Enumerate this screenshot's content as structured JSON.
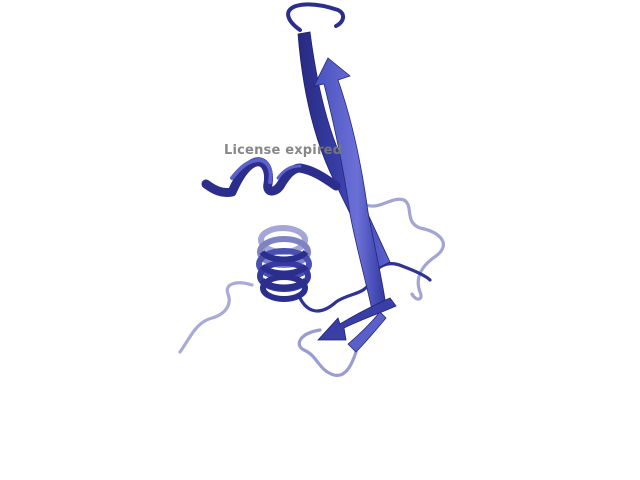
{
  "scene": {
    "description_label": "protein-cartoon",
    "colors": {
      "background": "#ffffff",
      "ribbon_dark": "#2b2e8c",
      "ribbon_mid": "#3a3fa8",
      "ribbon_light": "#5a60c8",
      "coil_light": "#a8abd8",
      "coil_mid": "#8487c4",
      "watermark": "#7b7b7b"
    }
  },
  "watermark": {
    "text": "License expired"
  }
}
